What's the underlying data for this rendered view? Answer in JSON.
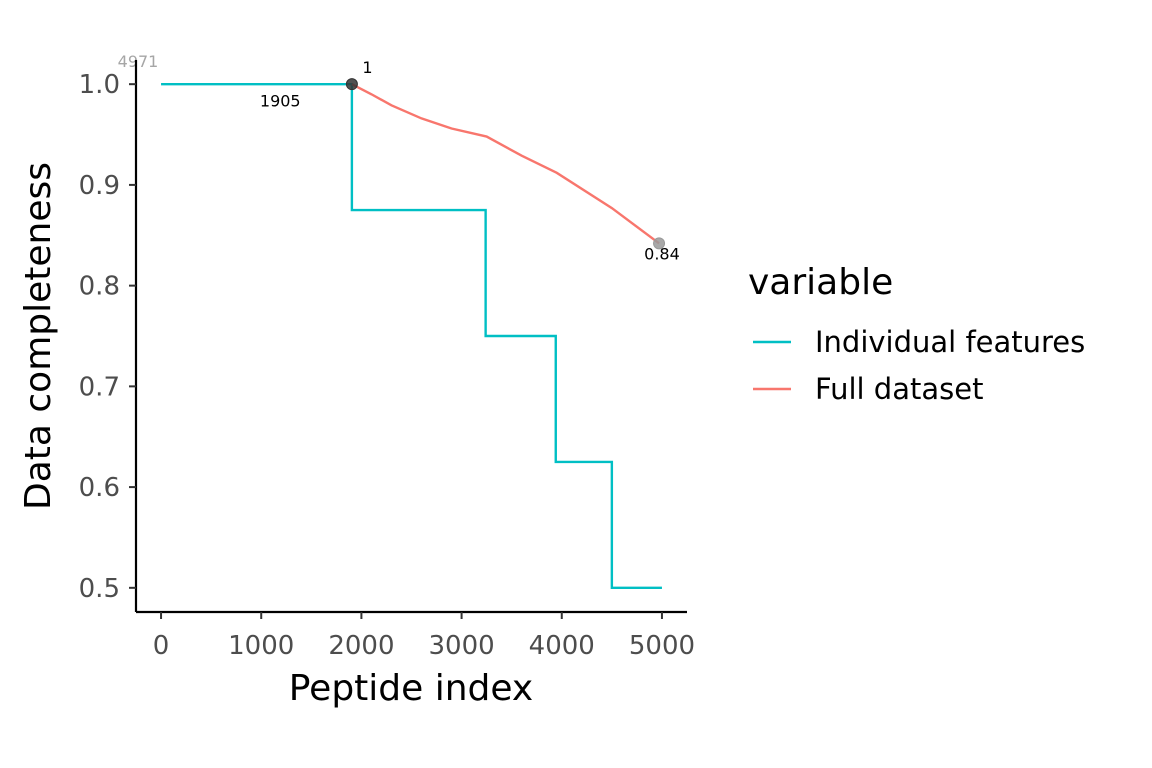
{
  "chart_data": {
    "type": "line",
    "title": "",
    "xlabel": "Peptide index",
    "ylabel": "Data completeness",
    "xlim": [
      -250,
      5250
    ],
    "ylim": [
      0.476,
      1.024
    ],
    "x_ticks": [
      0,
      1000,
      2000,
      3000,
      4000,
      5000
    ],
    "x_tick_labels": [
      "0",
      "1000",
      "2000",
      "3000",
      "4000",
      "5000"
    ],
    "y_ticks": [
      0.5,
      0.6,
      0.7,
      0.8,
      0.9,
      1.0
    ],
    "y_tick_labels": [
      "0.5",
      "0.6",
      "0.7",
      "0.8",
      "0.9",
      "1.0"
    ],
    "grid": false,
    "legend": {
      "title": "variable",
      "position": "right"
    },
    "series": [
      {
        "name": "Individual features",
        "color": "#00BFC4",
        "style": "step",
        "points": [
          [
            0,
            1.0
          ],
          [
            1905,
            1.0
          ],
          [
            1905,
            0.875
          ],
          [
            3240,
            0.875
          ],
          [
            3240,
            0.75
          ],
          [
            3940,
            0.75
          ],
          [
            3940,
            0.625
          ],
          [
            4500,
            0.625
          ],
          [
            4500,
            0.5
          ],
          [
            5000,
            0.5
          ]
        ]
      },
      {
        "name": "Full dataset",
        "color": "#F8766D",
        "style": "line",
        "points": [
          [
            1905,
            1.0
          ],
          [
            2100,
            0.99
          ],
          [
            2300,
            0.979
          ],
          [
            2600,
            0.966
          ],
          [
            2900,
            0.956
          ],
          [
            3250,
            0.948
          ],
          [
            3600,
            0.929
          ],
          [
            3950,
            0.912
          ],
          [
            4500,
            0.877
          ],
          [
            4971,
            0.842
          ]
        ]
      }
    ],
    "markers": [
      {
        "x": 1905,
        "y": 1.0,
        "color": "#333333"
      },
      {
        "x": 4971,
        "y": 0.842,
        "color": "#999999"
      }
    ],
    "annotations": [
      {
        "text": "4971",
        "x": -230,
        "y": 1.017,
        "style": "gray"
      },
      {
        "text": "1",
        "x": 2060,
        "y": 1.011,
        "style": "black"
      },
      {
        "text": "1905",
        "x": 1190,
        "y": 0.978,
        "style": "black"
      },
      {
        "text": "0.84",
        "x": 5000,
        "y": 0.826,
        "style": "black"
      }
    ]
  }
}
